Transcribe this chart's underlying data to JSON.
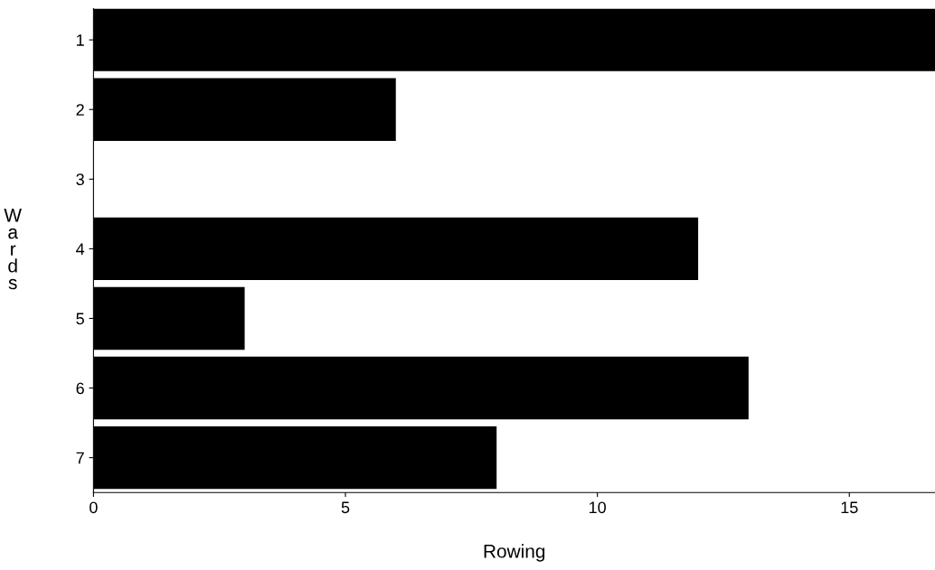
{
  "chart_data": {
    "type": "bar",
    "orientation": "horizontal",
    "categories": [
      "1",
      "2",
      "3",
      "4",
      "5",
      "6",
      "7"
    ],
    "values": [
      16.7,
      6,
      0,
      12,
      3,
      13,
      8
    ],
    "color": "#000000",
    "xlabel": "Rowing",
    "ylabel": "Wards",
    "xlim": [
      0,
      16.7
    ],
    "xticks": [
      0,
      5,
      10,
      15
    ],
    "grid": false,
    "legend": false
  }
}
